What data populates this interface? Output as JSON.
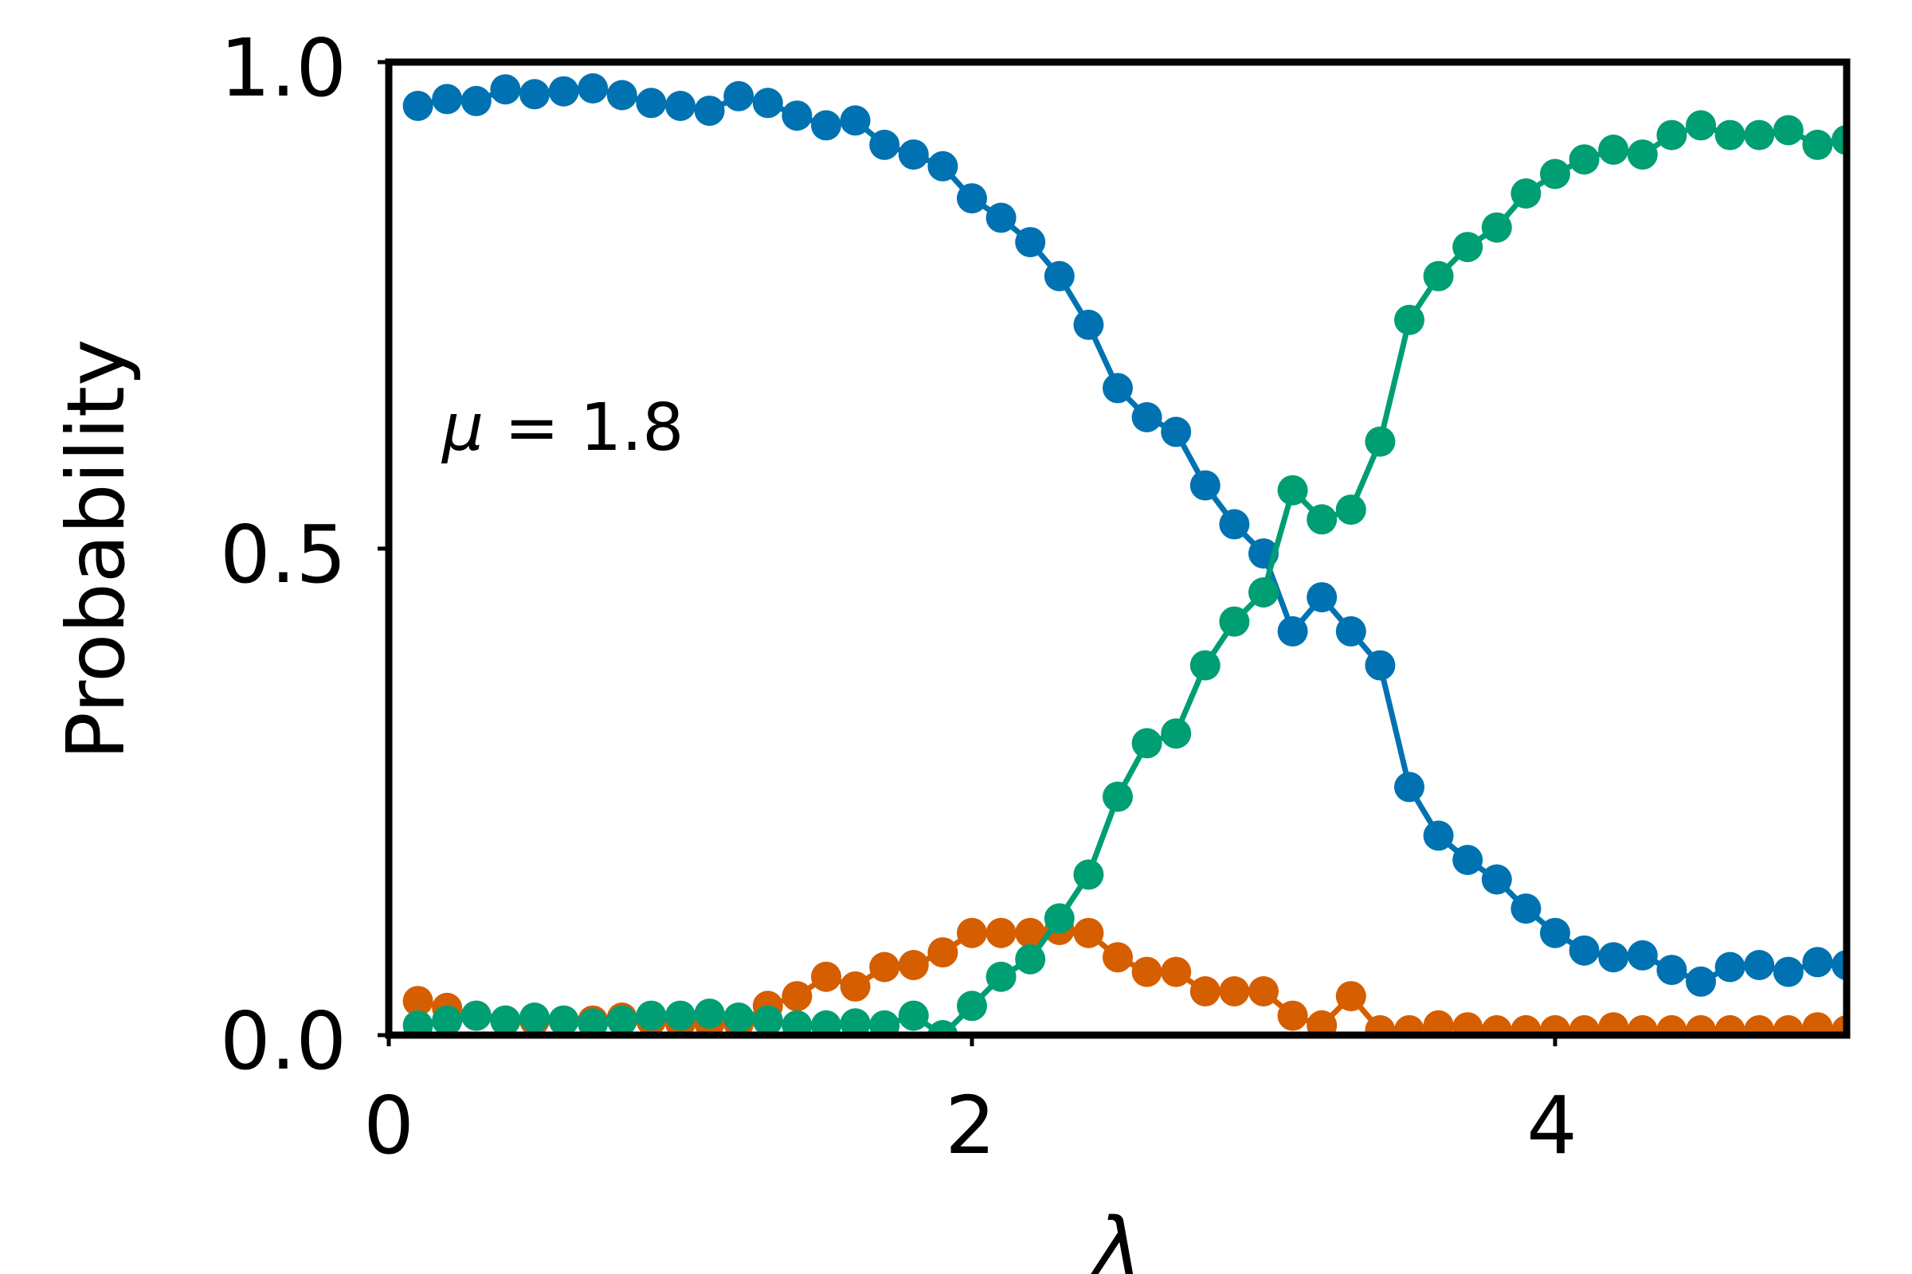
{
  "chart_data": {
    "type": "line",
    "title": "",
    "xlabel": "λ",
    "ylabel": "Probability",
    "xlim": [
      0,
      5
    ],
    "ylim": [
      0,
      1
    ],
    "xticks": [
      0,
      2,
      4
    ],
    "yticks": [
      0.0,
      0.5,
      1.0
    ],
    "xtick_labels": [
      "0",
      "2",
      "4"
    ],
    "ytick_labels": [
      "0.0",
      "0.5",
      "1.0"
    ],
    "grid": false,
    "legend": "none",
    "annotation": {
      "text": "μ = 1.8",
      "symbol": "μ",
      "rest": " = 1.8"
    },
    "x": [
      0.1,
      0.2,
      0.3,
      0.4,
      0.5,
      0.6,
      0.7,
      0.8,
      0.9,
      1.0,
      1.1,
      1.2,
      1.3,
      1.4,
      1.5,
      1.6,
      1.7,
      1.8,
      1.9,
      2.0,
      2.1,
      2.2,
      2.3,
      2.4,
      2.5,
      2.6,
      2.7,
      2.8,
      2.9,
      3.0,
      3.1,
      3.2,
      3.3,
      3.4,
      3.5,
      3.6,
      3.7,
      3.8,
      3.9,
      4.0,
      4.1,
      4.2,
      4.3,
      4.4,
      4.5,
      4.6,
      4.7,
      4.8,
      4.9,
      5.0
    ],
    "series": [
      {
        "color": "#0072b2",
        "values": [
          0.955,
          0.962,
          0.96,
          0.972,
          0.967,
          0.97,
          0.973,
          0.966,
          0.958,
          0.955,
          0.95,
          0.965,
          0.958,
          0.945,
          0.935,
          0.94,
          0.915,
          0.905,
          0.893,
          0.86,
          0.84,
          0.815,
          0.78,
          0.73,
          0.665,
          0.635,
          0.62,
          0.565,
          0.525,
          0.495,
          0.415,
          0.45,
          0.415,
          0.38,
          0.255,
          0.205,
          0.18,
          0.16,
          0.13,
          0.105,
          0.087,
          0.08,
          0.082,
          0.067,
          0.055,
          0.07,
          0.072,
          0.065,
          0.075,
          0.072
        ]
      },
      {
        "color": "#d55e00",
        "values": [
          0.035,
          0.028,
          0.02,
          0.015,
          0.015,
          0.015,
          0.015,
          0.018,
          0.015,
          0.012,
          0.012,
          0.012,
          0.03,
          0.04,
          0.06,
          0.05,
          0.07,
          0.072,
          0.085,
          0.105,
          0.105,
          0.105,
          0.108,
          0.105,
          0.08,
          0.065,
          0.065,
          0.045,
          0.045,
          0.045,
          0.02,
          0.01,
          0.04,
          0.005,
          0.005,
          0.01,
          0.008,
          0.005,
          0.005,
          0.005,
          0.005,
          0.008,
          0.005,
          0.005,
          0.005,
          0.005,
          0.005,
          0.005,
          0.008,
          0.005
        ]
      },
      {
        "color": "#009e73",
        "values": [
          0.01,
          0.015,
          0.02,
          0.015,
          0.018,
          0.015,
          0.012,
          0.015,
          0.02,
          0.02,
          0.022,
          0.018,
          0.015,
          0.01,
          0.01,
          0.012,
          0.01,
          0.02,
          0.0,
          0.03,
          0.06,
          0.078,
          0.12,
          0.165,
          0.245,
          0.3,
          0.31,
          0.38,
          0.425,
          0.455,
          0.56,
          0.53,
          0.54,
          0.61,
          0.735,
          0.78,
          0.81,
          0.83,
          0.865,
          0.885,
          0.9,
          0.91,
          0.905,
          0.925,
          0.935,
          0.925,
          0.925,
          0.93,
          0.915,
          0.92
        ]
      }
    ]
  }
}
